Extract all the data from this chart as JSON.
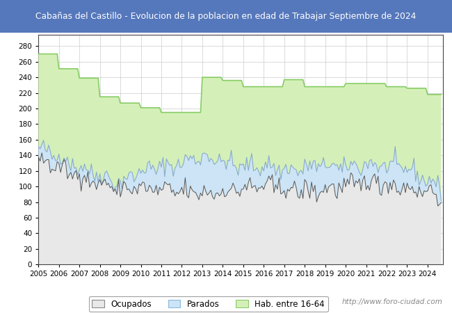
{
  "title": "Cabañas del Castillo - Evolucion de la poblacion en edad de Trabajar Septiembre de 2024",
  "title_bg": "#5577bb",
  "title_color": "white",
  "watermark": "http://www.foro-ciudad.com",
  "legend_labels": [
    "Ocupados",
    "Parados",
    "Hab. entre 16-64"
  ],
  "ylim": [
    0,
    295
  ],
  "yticks": [
    0,
    20,
    40,
    60,
    80,
    100,
    120,
    140,
    160,
    180,
    200,
    220,
    240,
    260,
    280
  ],
  "hab1664_annual": {
    "2005": 270,
    "2006": 251,
    "2007": 239,
    "2008": 215,
    "2009": 207,
    "2010": 201,
    "2011": 195,
    "2012": 195,
    "2013": 240,
    "2014": 236,
    "2015": 228,
    "2016": 228,
    "2017": 237,
    "2018": 228,
    "2019": 228,
    "2020": 232,
    "2021": 232,
    "2022": 228,
    "2023": 226,
    "2024": 218
  },
  "ocu_fill_color": "#e8e8e8",
  "ocu_fill_edge": "#888888",
  "par_fill_color": "#cce4f5",
  "par_fill_edge": "#88bbdd",
  "hab_fill_color": "#d4f0b8",
  "hab_fill_edge": "#88cc66",
  "ocu_line_color": "#555555",
  "par_line_color": "#88aacc"
}
